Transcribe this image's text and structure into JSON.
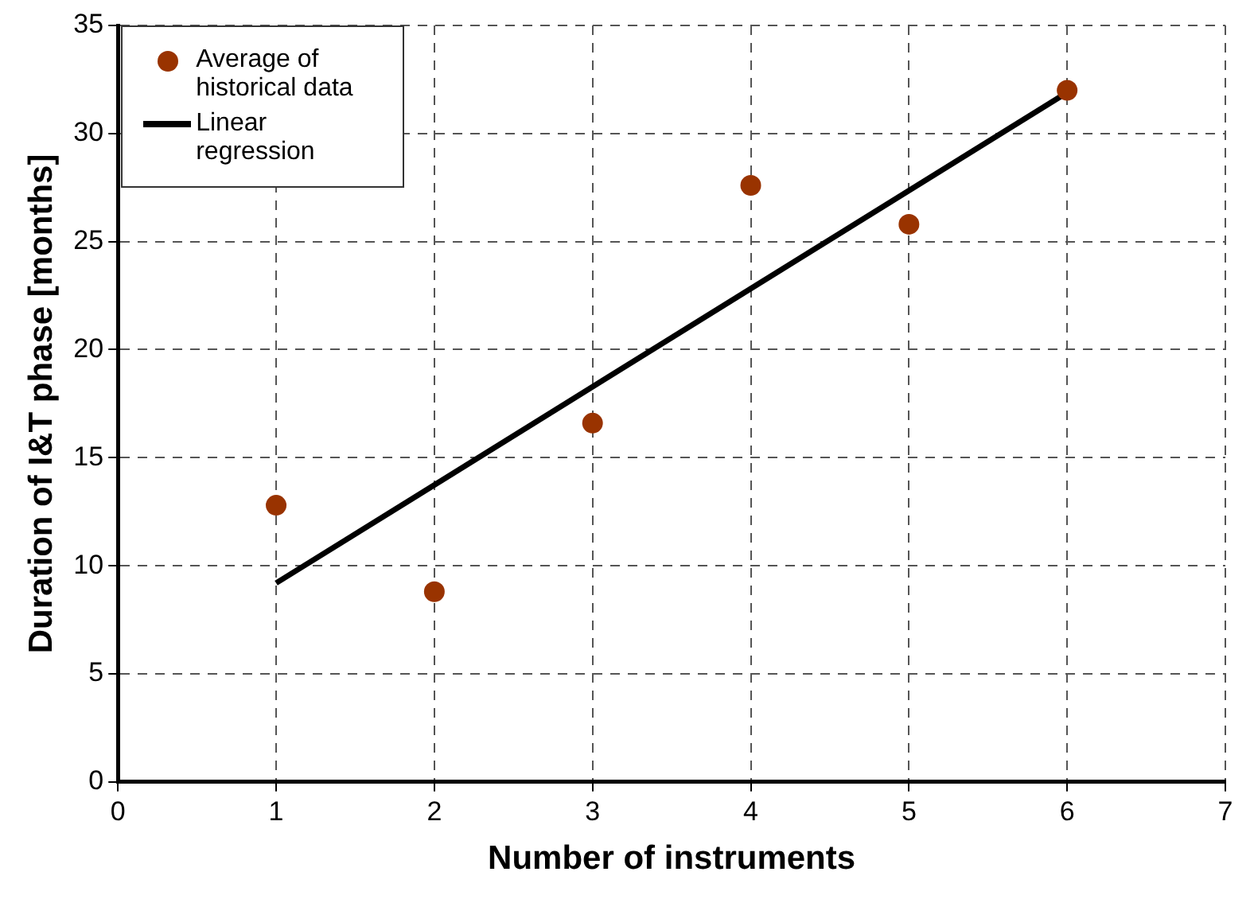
{
  "chart_data": {
    "type": "scatter",
    "xlabel": "Number of instruments",
    "ylabel": "Duration of I&T phase [months]",
    "x": [
      1,
      2,
      3,
      4,
      5,
      6
    ],
    "series": [
      {
        "name": "Average of historical data",
        "color": "#993300",
        "type": "scatter",
        "marker": "circle",
        "values": [
          12.8,
          8.8,
          16.6,
          27.6,
          25.8,
          32.0
        ]
      },
      {
        "name": "Linear regression",
        "color": "#000000",
        "type": "line",
        "marker": "none",
        "x": [
          1,
          6
        ],
        "values": [
          9.2,
          31.9
        ]
      }
    ],
    "xlim": [
      0,
      7
    ],
    "xticks": [
      0,
      1,
      2,
      3,
      4,
      5,
      6,
      7
    ],
    "ylim": [
      0,
      35
    ],
    "yticks": [
      0,
      5,
      10,
      15,
      20,
      25,
      30,
      35
    ],
    "grid": true,
    "legend": "top left"
  }
}
